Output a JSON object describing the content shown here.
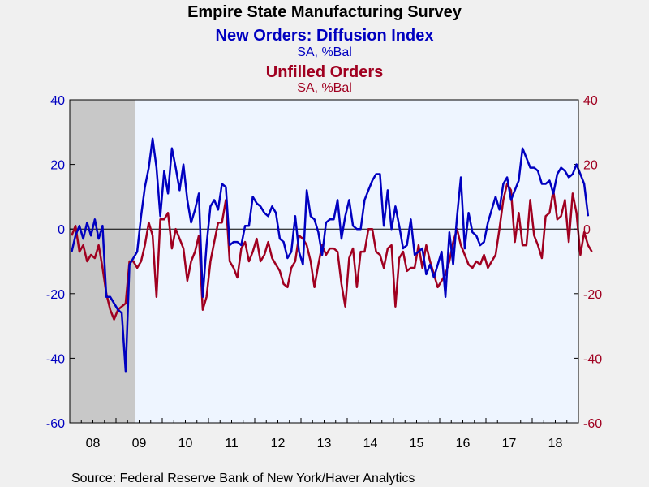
{
  "chart_data": {
    "type": "line",
    "title": "Empire State Manufacturing Survey",
    "series_titles": [
      {
        "name": "New Orders: Diffusion Index",
        "unit": "SA, %Bal",
        "color": "#0000c0"
      },
      {
        "name": "Unfilled Orders",
        "unit": "SA, %Bal",
        "color": "#a00020"
      }
    ],
    "source": "Source:  Federal Reserve Bank of New York/Haver Analytics",
    "x_tick_labels": [
      "08",
      "09",
      "10",
      "11",
      "12",
      "13",
      "14",
      "15",
      "16",
      "17",
      "18"
    ],
    "x_range": [
      "2008-01",
      "2018-12"
    ],
    "ylim_left": [
      -60,
      40
    ],
    "ylim_right": [
      -60,
      40
    ],
    "y_ticks": [
      -60,
      -40,
      -20,
      0,
      20,
      40
    ],
    "y_tick_labels_left": [
      "-60",
      "-40",
      "-20",
      "0",
      "20",
      "40"
    ],
    "y_tick_labels_right": [
      "-60",
      "-40",
      "-20",
      "0",
      "20",
      "40"
    ],
    "zero_line": true,
    "recession_shading": {
      "start": "2008-01",
      "end": "2009-06",
      "color": "#c8c8c8"
    },
    "plot_background": "#eef5ff",
    "series": [
      {
        "name": "New Orders: Diffusion Index",
        "color": "#0000c0",
        "start": "2008-01",
        "values": [
          -7,
          -2,
          1,
          -3,
          2,
          -2,
          3,
          -3,
          1,
          -21,
          -21,
          -23,
          -25,
          -26,
          -44,
          -11,
          -9,
          -7,
          4,
          13,
          19,
          28,
          19,
          4,
          18,
          11,
          25,
          19,
          12,
          20,
          9,
          2,
          6,
          11,
          -21,
          -5,
          7,
          9,
          6,
          14,
          13,
          -5,
          -4,
          -4,
          -5,
          1,
          1,
          10,
          8,
          7,
          5,
          4,
          7,
          5,
          -3,
          -4,
          -9,
          -7,
          4,
          -7,
          -11,
          12,
          4,
          3,
          -1,
          -8,
          2,
          3,
          3,
          9,
          -3,
          4,
          9,
          1,
          0,
          0,
          9,
          12,
          15,
          17,
          17,
          1,
          12,
          0,
          7,
          1,
          -6,
          -5,
          3,
          -8,
          -7,
          -6,
          -14,
          -11,
          -15,
          -11,
          -7,
          -21,
          -1,
          -11,
          4,
          16,
          -6,
          5,
          -1,
          -2,
          -5,
          -4,
          2,
          6,
          10,
          6,
          14,
          16,
          9,
          12,
          15,
          25,
          22,
          19,
          19,
          18,
          14,
          14,
          15,
          11,
          17,
          19,
          18,
          16,
          17,
          20,
          17,
          14,
          4
        ]
      },
      {
        "name": "Unfilled Orders",
        "color": "#a00020",
        "start": "2008-01",
        "values": [
          -2,
          1,
          -7,
          -5,
          -10,
          -8,
          -9,
          -5,
          -12,
          -20,
          -25,
          -28,
          -25,
          -24,
          -23,
          -10,
          -10,
          -12,
          -10,
          -5,
          2,
          -2,
          -21,
          3,
          3,
          5,
          -6,
          0,
          -3,
          -6,
          -16,
          -10,
          -7,
          -2,
          -25,
          -21,
          -10,
          -4,
          2,
          2,
          9,
          -10,
          -12,
          -15,
          -6,
          -4,
          -10,
          -7,
          -3,
          -10,
          -8,
          -4,
          -9,
          -11,
          -13,
          -17,
          -18,
          -12,
          -10,
          -2,
          -3,
          -5,
          -10,
          -18,
          -11,
          -5,
          -8,
          -6,
          -6,
          -7,
          -17,
          -24,
          -9,
          -6,
          -18,
          -7,
          -7,
          0,
          0,
          -7,
          -8,
          -12,
          -6,
          -5,
          -24,
          -9,
          -7,
          -13,
          -12,
          -12,
          -5,
          -12,
          -5,
          -10,
          -14,
          -18,
          -16,
          -14,
          -10,
          -4,
          0,
          -5,
          -8,
          -11,
          -12,
          -10,
          -11,
          -8,
          -12,
          -10,
          -8,
          0,
          9,
          14,
          12,
          -4,
          5,
          -5,
          -5,
          9,
          -2,
          -5,
          -9,
          4,
          5,
          12,
          3,
          4,
          9,
          -4,
          11,
          5,
          -8,
          -1,
          -5,
          -7
        ]
      }
    ]
  }
}
